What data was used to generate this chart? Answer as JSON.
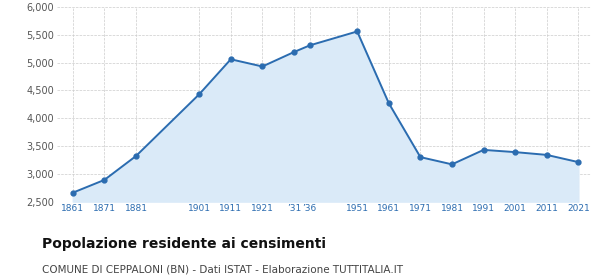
{
  "years": [
    1861,
    1871,
    1881,
    1901,
    1911,
    1921,
    1931,
    1936,
    1951,
    1961,
    1971,
    1981,
    1991,
    2001,
    2011,
    2021
  ],
  "population": [
    2660,
    2890,
    3320,
    4430,
    5060,
    4930,
    5190,
    5310,
    5560,
    4270,
    3300,
    3170,
    3430,
    3390,
    3340,
    3210
  ],
  "x_tick_years": [
    1861,
    1871,
    1881,
    1901,
    1911,
    1921,
    1931,
    1936,
    1951,
    1961,
    1971,
    1981,
    1991,
    2001,
    2011,
    2021
  ],
  "x_tick_labels": [
    "1861",
    "1871",
    "1881",
    "1901",
    "1911",
    "1921",
    "’31",
    "’36",
    "1951",
    "1961",
    "1971",
    "1981",
    "1991",
    "2001",
    "2011",
    "2021"
  ],
  "ylim": [
    2500,
    6000
  ],
  "yticks": [
    2500,
    3000,
    3500,
    4000,
    4500,
    5000,
    5500,
    6000
  ],
  "line_color": "#2b6cb0",
  "fill_color": "#daeaf8",
  "marker_color": "#2b6cb0",
  "grid_color": "#cccccc",
  "background_color": "#ffffff",
  "title": "Popolazione residente ai censimenti",
  "subtitle": "COMUNE DI CEPPALONI (BN) - Dati ISTAT - Elaborazione TUTTITALIA.IT",
  "title_fontsize": 10,
  "subtitle_fontsize": 7.5,
  "tick_label_color": "#2b6cb0",
  "xlim_left": 1856,
  "xlim_right": 2025
}
